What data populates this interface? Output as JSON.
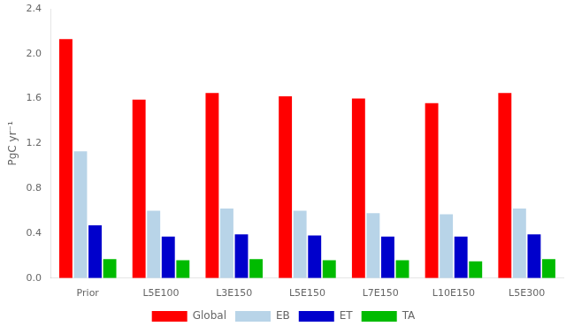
{
  "chart_data": {
    "type": "bar",
    "categories": [
      "Prior",
      "L5E100",
      "L3E150",
      "L5E150",
      "L7E150",
      "L10E150",
      "L5E300"
    ],
    "series": [
      {
        "name": "Global",
        "color": "#FF0000",
        "values": [
          2.13,
          1.59,
          1.65,
          1.62,
          1.6,
          1.56,
          1.65
        ]
      },
      {
        "name": "EB",
        "color": "#B8D4E8",
        "values": [
          1.13,
          0.6,
          0.62,
          0.6,
          0.58,
          0.57,
          0.62
        ]
      },
      {
        "name": "ET",
        "color": "#0000CC",
        "values": [
          0.47,
          0.37,
          0.39,
          0.38,
          0.37,
          0.37,
          0.39
        ]
      },
      {
        "name": "TA",
        "color": "#00BB00",
        "values": [
          0.17,
          0.16,
          0.17,
          0.16,
          0.16,
          0.15,
          0.17
        ]
      }
    ],
    "y_label": "PgC yr⁻¹",
    "ylim": [
      0.0,
      2.4
    ],
    "yticks": [
      {
        "value": 0,
        "label": "0.0"
      },
      0.4,
      0.8,
      1.2,
      1.6,
      {
        "value": 2,
        "label": "2.0"
      },
      2.4
    ],
    "grid": false,
    "legend": "bottom"
  }
}
